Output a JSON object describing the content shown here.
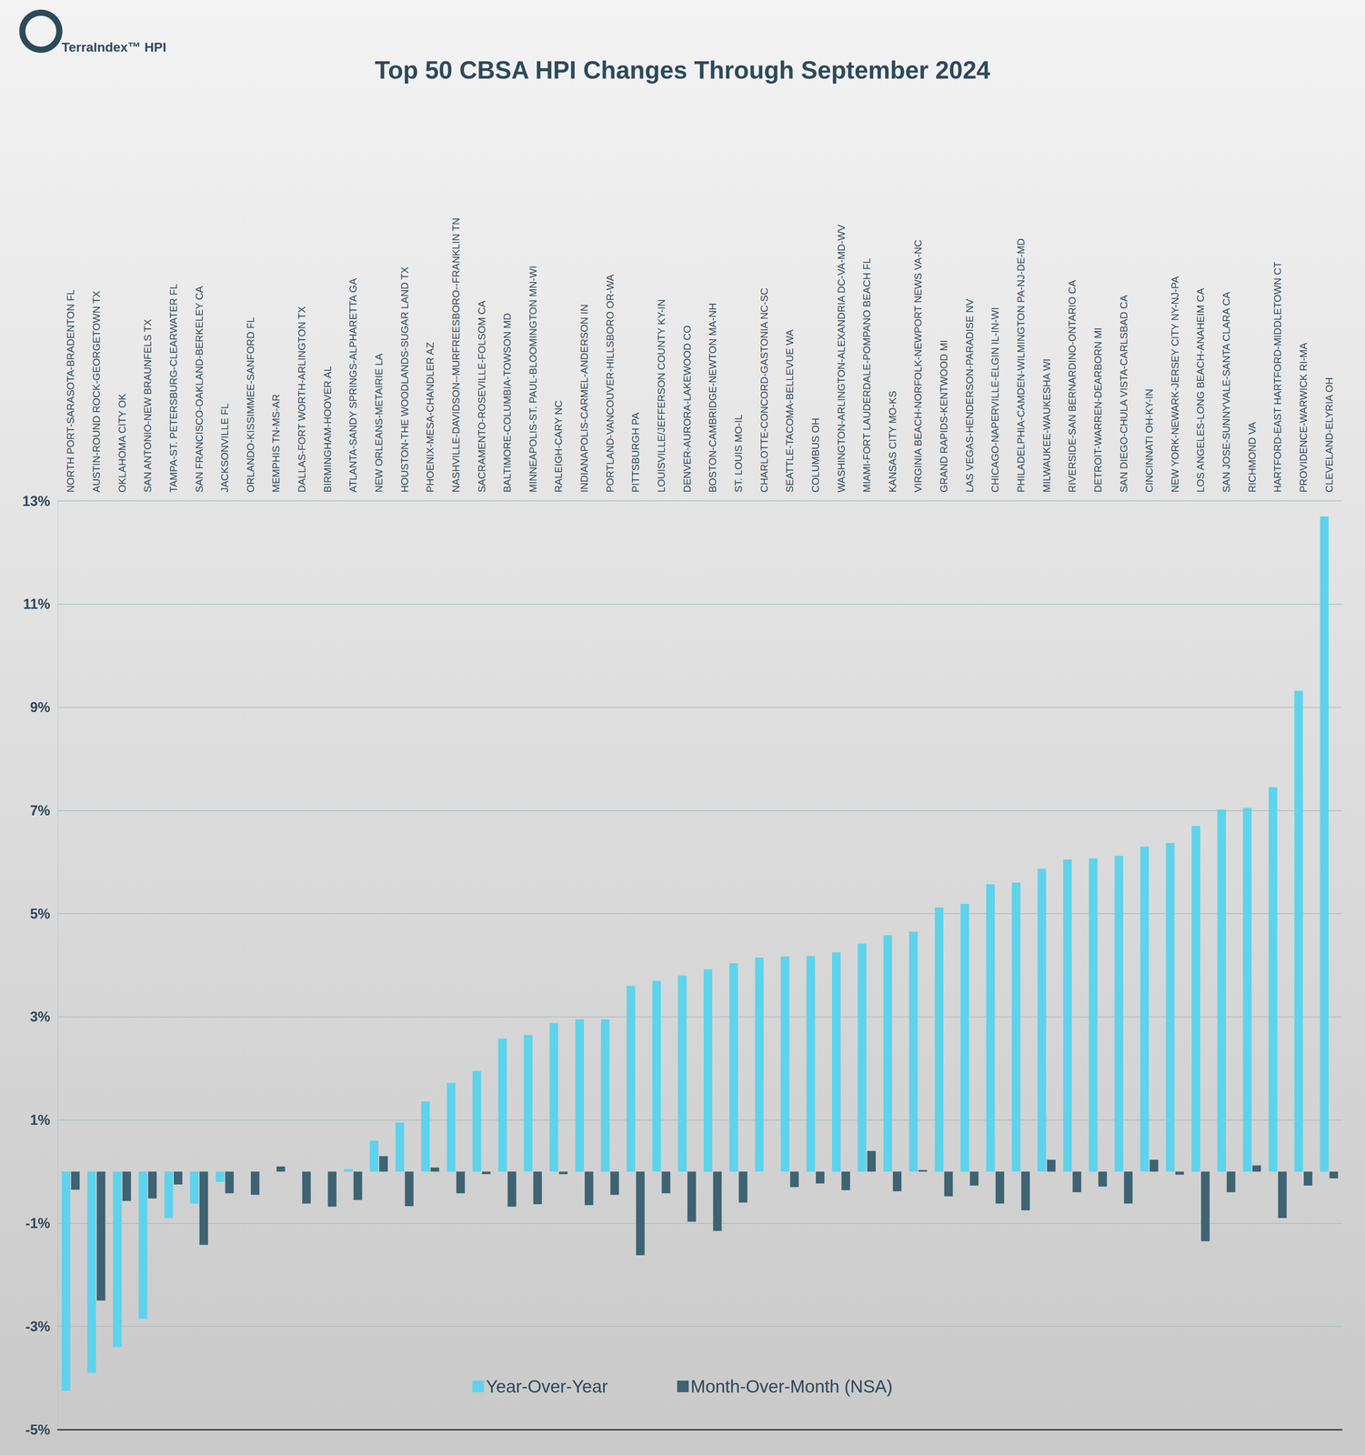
{
  "chart_data": {
    "type": "bar",
    "title": "Top 50 CBSA HPI Changes Through September 2024",
    "annotations": [
      "TerraIndex™ HPI"
    ],
    "categories": [
      "NORTH PORT-SARASOTA-BRADENTON FL",
      "AUSTIN-ROUND ROCK-GEORGETOWN TX",
      "OKLAHOMA CITY OK",
      "SAN ANTONIO-NEW BRAUNFELS TX",
      "TAMPA-ST. PETERSBURG-CLEARWATER FL",
      "SAN FRANCISCO-OAKLAND-BERKELEY CA",
      "JACKSONVILLE FL",
      "ORLANDO-KISSIMMEE-SANFORD FL",
      "MEMPHIS TN-MS-AR",
      "DALLAS-FORT WORTH-ARLINGTON TX",
      "BIRMINGHAM-HOOVER AL",
      "ATLANTA-SANDY SPRINGS-ALPHARETTA GA",
      "NEW ORLEANS-METAIRIE LA",
      "HOUSTON-THE WOODLANDS-SUGAR LAND TX",
      "PHOENIX-MESA-CHANDLER AZ",
      "NASHVILLE-DAVIDSON--MURFREESBORO--FRANKLIN TN",
      "SACRAMENTO-ROSEVILLE-FOLSOM CA",
      "BALTIMORE-COLUMBIA-TOWSON MD",
      "MINNEAPOLIS-ST. PAUL-BLOOMINGTON MN-WI",
      "RALEIGH-CARY NC",
      "INDIANAPOLIS-CARMEL-ANDERSON IN",
      "PORTLAND-VANCOUVER-HILLSBORO OR-WA",
      "PITTSBURGH PA",
      "LOUISVILLE/JEFFERSON COUNTY KY-IN",
      "DENVER-AURORA-LAKEWOOD CO",
      "BOSTON-CAMBRIDGE-NEWTON MA-NH",
      "ST. LOUIS MO-IL",
      "CHARLOTTE-CONCORD-GASTONIA NC-SC",
      "SEATTLE-TACOMA-BELLEVUE WA",
      "COLUMBUS OH",
      "WASHINGTON-ARLINGTON-ALEXANDRIA DC-VA-MD-WV",
      "MIAMI-FORT LAUDERDALE-POMPANO BEACH FL",
      "KANSAS CITY MO-KS",
      "VIRGINIA BEACH-NORFOLK-NEWPORT NEWS VA-NC",
      "GRAND RAPIDS-KENTWOOD MI",
      "LAS VEGAS-HENDERSON-PARADISE NV",
      "CHICAGO-NAPERVILLE-ELGIN IL-IN-WI",
      "PHILADELPHIA-CAMDEN-WILMINGTON PA-NJ-DE-MD",
      "MILWAUKEE-WAUKESHA WI",
      "RIVERSIDE-SAN BERNARDINO-ONTARIO CA",
      "DETROIT-WARREN-DEARBORN MI",
      "SAN DIEGO-CHULA VISTA-CARLSBAD CA",
      "CINCINNATI OH-KY-IN",
      "NEW YORK-NEWARK-JERSEY CITY NY-NJ-PA",
      "LOS ANGELES-LONG BEACH-ANAHEIM CA",
      "SAN JOSE-SUNNYVALE-SANTA CLARA CA",
      "RICHMOND VA",
      "HARTFORD-EAST HARTFORD-MIDDLETOWN CT",
      "PROVIDENCE-WARWICK RI-MA",
      "CLEVELAND-ELYRIA OH"
    ],
    "series": [
      {
        "name": "Year-Over-Year",
        "color": "#5dd3ec",
        "values": [
          -4.25,
          -3.9,
          -3.4,
          -2.85,
          -0.9,
          -0.62,
          -0.2,
          0.0,
          0.0,
          0.0,
          0.0,
          0.05,
          0.6,
          0.95,
          1.36,
          1.72,
          1.95,
          2.58,
          2.65,
          2.88,
          2.95,
          2.95,
          3.6,
          3.7,
          3.8,
          3.92,
          4.04,
          4.15,
          4.17,
          4.18,
          4.25,
          4.42,
          4.58,
          4.65,
          5.12,
          5.19,
          5.57,
          5.6,
          5.87,
          6.05,
          6.07,
          6.12,
          6.3,
          6.37,
          6.7,
          7.02,
          7.05,
          7.45,
          9.32,
          12.7
        ]
      },
      {
        "name": "Month-Over-Month (NSA)",
        "color": "#3e6373",
        "values": [
          -0.35,
          -2.5,
          -0.57,
          -0.52,
          -0.25,
          -1.42,
          -0.42,
          -0.45,
          0.1,
          -0.62,
          -0.68,
          -0.55,
          0.3,
          -0.67,
          0.08,
          -0.42,
          -0.05,
          -0.68,
          -0.63,
          -0.05,
          -0.65,
          -0.45,
          -1.62,
          -0.42,
          -0.97,
          -1.15,
          -0.6,
          0.0,
          -0.3,
          -0.23,
          -0.36,
          0.4,
          -0.38,
          0.03,
          -0.48,
          -0.27,
          -0.62,
          -0.75,
          0.23,
          -0.4,
          -0.29,
          -0.62,
          0.23,
          -0.06,
          -1.35,
          -0.4,
          0.12,
          -0.9,
          -0.27,
          -0.13
        ]
      }
    ],
    "ylim": [
      -5,
      13
    ],
    "yticks": [
      {
        "value": -5,
        "label": "-5%"
      },
      {
        "value": -3,
        "label": "-3%"
      },
      {
        "value": -1,
        "label": "-1%"
      },
      {
        "value": 1,
        "label": "1%"
      },
      {
        "value": 3,
        "label": "3%"
      },
      {
        "value": 5,
        "label": "5%"
      },
      {
        "value": 7,
        "label": "7%"
      },
      {
        "value": 9,
        "label": "9%"
      },
      {
        "value": 11,
        "label": "11%"
      },
      {
        "value": 13,
        "label": "13%"
      }
    ],
    "grid": true,
    "legend": "bottom"
  }
}
